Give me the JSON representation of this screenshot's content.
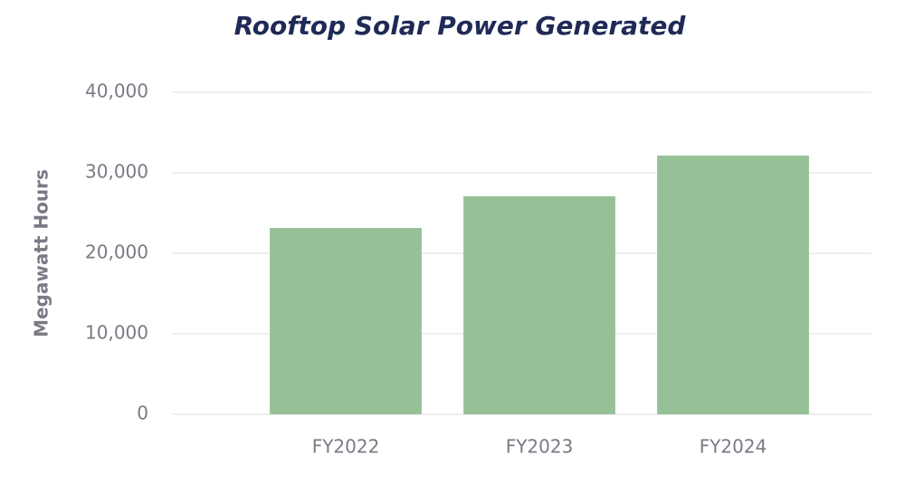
{
  "chart_data": {
    "type": "bar",
    "title": "Rooftop Solar Power Generated",
    "y_label": "Megawatt Hours",
    "categories": [
      "FY2022",
      "FY2023",
      "FY2024"
    ],
    "values": [
      23150,
      27080,
      32140
    ],
    "color": "#96c196",
    "ylim": [
      0,
      40000
    ],
    "yticks": [
      0,
      {
        "value": 10000,
        "label": "10,000"
      },
      {
        "value": 20000,
        "label": "20,000"
      },
      {
        "value": 30000,
        "label": "30,000"
      },
      {
        "value": 40000,
        "label": "40,000"
      }
    ],
    "grid": true
  }
}
